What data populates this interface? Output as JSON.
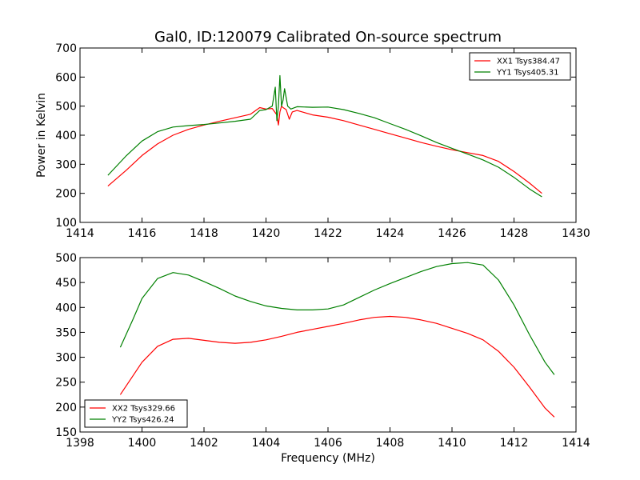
{
  "chart_data": [
    {
      "type": "line",
      "title": "Gal0, ID:120079 Calibrated On-source spectrum",
      "xlabel": "",
      "ylabel": "Power in Kelvin",
      "xlim": [
        1414,
        1430
      ],
      "ylim": [
        100,
        700
      ],
      "xticks": [
        "1414",
        "1416",
        "1418",
        "1420",
        "1422",
        "1424",
        "1426",
        "1428",
        "1430"
      ],
      "yticks": [
        "100",
        "200",
        "300",
        "400",
        "500",
        "600",
        "700"
      ],
      "legend_position": "top-right",
      "series": [
        {
          "name": "XX1 Tsys384.47",
          "color": "#ff0000",
          "x": [
            1414.9,
            1415.5,
            1416.0,
            1416.5,
            1417.0,
            1417.5,
            1418.0,
            1418.5,
            1419.0,
            1419.5,
            1419.8,
            1420.0,
            1420.2,
            1420.35,
            1420.4,
            1420.45,
            1420.5,
            1420.55,
            1420.65,
            1420.75,
            1420.85,
            1421.0,
            1421.5,
            1422.0,
            1422.5,
            1423.0,
            1423.5,
            1424.0,
            1424.5,
            1425.0,
            1425.5,
            1426.0,
            1426.5,
            1427.0,
            1427.5,
            1428.0,
            1428.5,
            1428.9
          ],
          "y": [
            225,
            280,
            330,
            370,
            400,
            420,
            435,
            448,
            460,
            472,
            495,
            490,
            492,
            470,
            435,
            480,
            500,
            495,
            488,
            455,
            480,
            485,
            470,
            462,
            450,
            435,
            420,
            405,
            390,
            375,
            362,
            350,
            340,
            330,
            310,
            275,
            235,
            200
          ]
        },
        {
          "name": "YY1 Tsys405.31",
          "color": "#008000",
          "x": [
            1414.9,
            1415.5,
            1416.0,
            1416.5,
            1417.0,
            1417.5,
            1418.0,
            1418.5,
            1419.0,
            1419.5,
            1419.8,
            1420.0,
            1420.2,
            1420.3,
            1420.35,
            1420.4,
            1420.45,
            1420.5,
            1420.55,
            1420.6,
            1420.7,
            1420.8,
            1421.0,
            1421.5,
            1422.0,
            1422.5,
            1423.0,
            1423.5,
            1424.0,
            1424.5,
            1425.0,
            1425.5,
            1426.0,
            1426.5,
            1427.0,
            1427.5,
            1428.0,
            1428.5,
            1428.9
          ],
          "y": [
            262,
            330,
            380,
            412,
            428,
            433,
            437,
            442,
            448,
            455,
            485,
            488,
            500,
            565,
            450,
            500,
            605,
            500,
            520,
            560,
            500,
            490,
            498,
            496,
            497,
            488,
            475,
            460,
            440,
            420,
            398,
            375,
            355,
            335,
            315,
            290,
            255,
            215,
            188
          ]
        }
      ]
    },
    {
      "type": "line",
      "title": "",
      "xlabel": "Frequency (MHz)",
      "ylabel": "",
      "xlim": [
        1398,
        1414
      ],
      "ylim": [
        150,
        500
      ],
      "xticks": [
        "1398",
        "1400",
        "1402",
        "1404",
        "1406",
        "1408",
        "1410",
        "1412",
        "1414"
      ],
      "yticks": [
        "150",
        "200",
        "250",
        "300",
        "350",
        "400",
        "450",
        "500"
      ],
      "legend_position": "bottom-left",
      "series": [
        {
          "name": "XX2 Tsys329.66",
          "color": "#ff0000",
          "x": [
            1399.3,
            1399.7,
            1400.0,
            1400.5,
            1401.0,
            1401.5,
            1402.0,
            1402.5,
            1403.0,
            1403.5,
            1404.0,
            1404.5,
            1405.0,
            1405.5,
            1406.0,
            1406.5,
            1407.0,
            1407.5,
            1408.0,
            1408.5,
            1409.0,
            1409.5,
            1410.0,
            1410.5,
            1411.0,
            1411.5,
            1412.0,
            1412.5,
            1413.0,
            1413.3
          ],
          "y": [
            225,
            262,
            290,
            322,
            336,
            338,
            334,
            330,
            328,
            330,
            335,
            342,
            350,
            356,
            362,
            368,
            375,
            380,
            382,
            380,
            375,
            368,
            358,
            348,
            335,
            312,
            280,
            240,
            198,
            180
          ]
        },
        {
          "name": "YY2 Tsys426.24",
          "color": "#008000",
          "x": [
            1399.3,
            1399.7,
            1400.0,
            1400.5,
            1401.0,
            1401.5,
            1402.0,
            1402.5,
            1403.0,
            1403.5,
            1404.0,
            1404.5,
            1405.0,
            1405.5,
            1406.0,
            1406.5,
            1407.0,
            1407.5,
            1408.0,
            1408.5,
            1409.0,
            1409.5,
            1410.0,
            1410.5,
            1411.0,
            1411.5,
            1412.0,
            1412.5,
            1413.0,
            1413.3
          ],
          "y": [
            320,
            375,
            418,
            458,
            470,
            465,
            452,
            438,
            423,
            412,
            403,
            398,
            395,
            395,
            397,
            405,
            420,
            435,
            448,
            460,
            472,
            482,
            488,
            490,
            485,
            455,
            405,
            345,
            290,
            265
          ]
        }
      ]
    }
  ]
}
